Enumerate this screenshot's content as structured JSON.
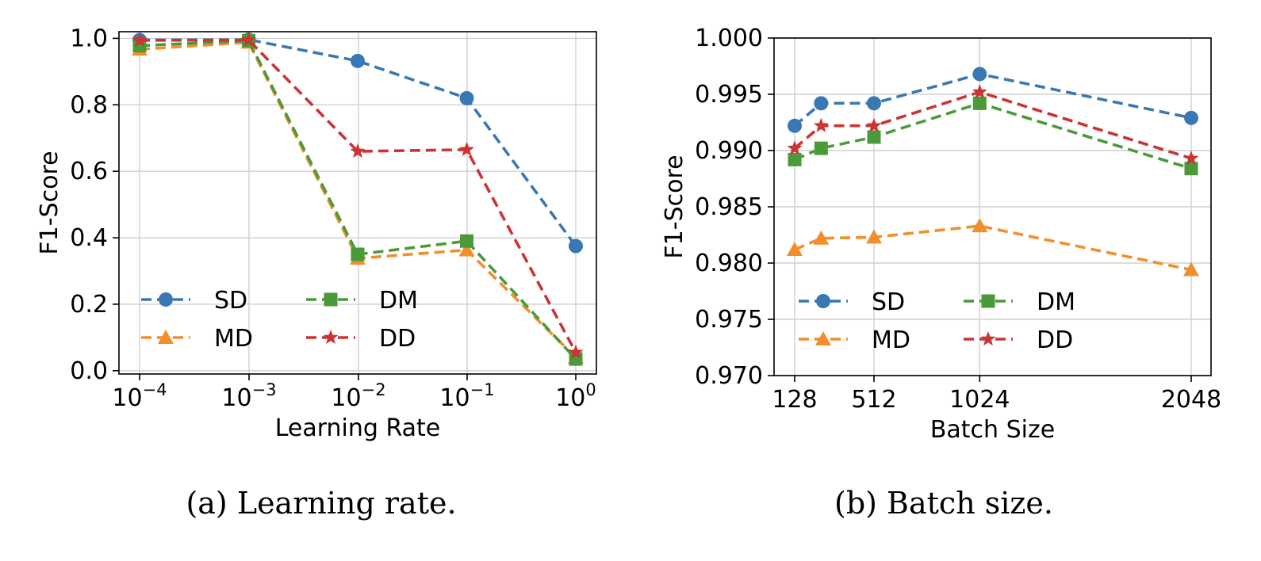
{
  "figure": {
    "captions": [
      "(a) Learning rate.",
      "(b) Batch size."
    ]
  },
  "styles": {
    "SD": {
      "color": "#3a78b5",
      "marker": "circle"
    },
    "MD": {
      "color": "#f28e2b",
      "marker": "triangle"
    },
    "DM": {
      "color": "#4a9a3a",
      "marker": "square"
    },
    "DD": {
      "color": "#cc3333",
      "marker": "star"
    }
  },
  "chart_data": [
    {
      "type": "line",
      "xlabel": "Learning Rate",
      "ylabel": "F1-Score",
      "xscale": "log",
      "x": [
        0.0001,
        0.001,
        0.01,
        0.1,
        1
      ],
      "xtick_labels": [
        {
          "base": "10",
          "exp": "−4"
        },
        {
          "base": "10",
          "exp": "−3"
        },
        {
          "base": "10",
          "exp": "−2"
        },
        {
          "base": "10",
          "exp": "−1"
        },
        {
          "base": "10",
          "exp": "0"
        }
      ],
      "ylim": [
        -0.01,
        1.02
      ],
      "yticks": [
        0.0,
        0.2,
        0.4,
        0.6,
        0.8,
        1.0
      ],
      "ytick_labels": [
        "0.0",
        "0.2",
        "0.4",
        "0.6",
        "0.8",
        "1.0"
      ],
      "grid": true,
      "legend": {
        "position": "lower-left",
        "columns": 2,
        "order": [
          "SD",
          "DM",
          "MD",
          "DD"
        ]
      },
      "series": [
        {
          "name": "SD",
          "values": [
            0.995,
            0.996,
            0.932,
            0.82,
            0.375
          ]
        },
        {
          "name": "MD",
          "values": [
            0.967,
            0.988,
            0.338,
            0.363,
            0.04
          ]
        },
        {
          "name": "DM",
          "values": [
            0.978,
            0.993,
            0.35,
            0.39,
            0.035
          ]
        },
        {
          "name": "DD",
          "values": [
            0.994,
            0.995,
            0.66,
            0.665,
            0.055
          ]
        }
      ]
    },
    {
      "type": "line",
      "xlabel": "Batch Size",
      "ylabel": "F1-Score",
      "x": [
        128,
        256,
        512,
        1024,
        2048
      ],
      "xlim": [
        128,
        2048
      ],
      "xticks": [
        128,
        512,
        1024,
        2048
      ],
      "xtick_labels": [
        "128",
        "512",
        "1024",
        "2048"
      ],
      "ylim": [
        0.97,
        1.0
      ],
      "yticks": [
        0.97,
        0.975,
        0.98,
        0.985,
        0.99,
        0.995,
        1.0
      ],
      "ytick_labels": [
        "0.970",
        "0.975",
        "0.980",
        "0.985",
        "0.990",
        "0.995",
        "1.000"
      ],
      "grid": true,
      "legend": {
        "position": "lower-left",
        "columns": 2,
        "order": [
          "SD",
          "DM",
          "MD",
          "DD"
        ]
      },
      "series": [
        {
          "name": "SD",
          "values": [
            0.9922,
            0.9942,
            0.9942,
            0.9968,
            0.9929
          ]
        },
        {
          "name": "MD",
          "values": [
            0.9812,
            0.9822,
            0.9823,
            0.9833,
            0.9794
          ]
        },
        {
          "name": "DM",
          "values": [
            0.9892,
            0.9902,
            0.9912,
            0.9942,
            0.9884
          ]
        },
        {
          "name": "DD",
          "values": [
            0.9902,
            0.9922,
            0.9922,
            0.9952,
            0.9893
          ]
        }
      ]
    }
  ]
}
